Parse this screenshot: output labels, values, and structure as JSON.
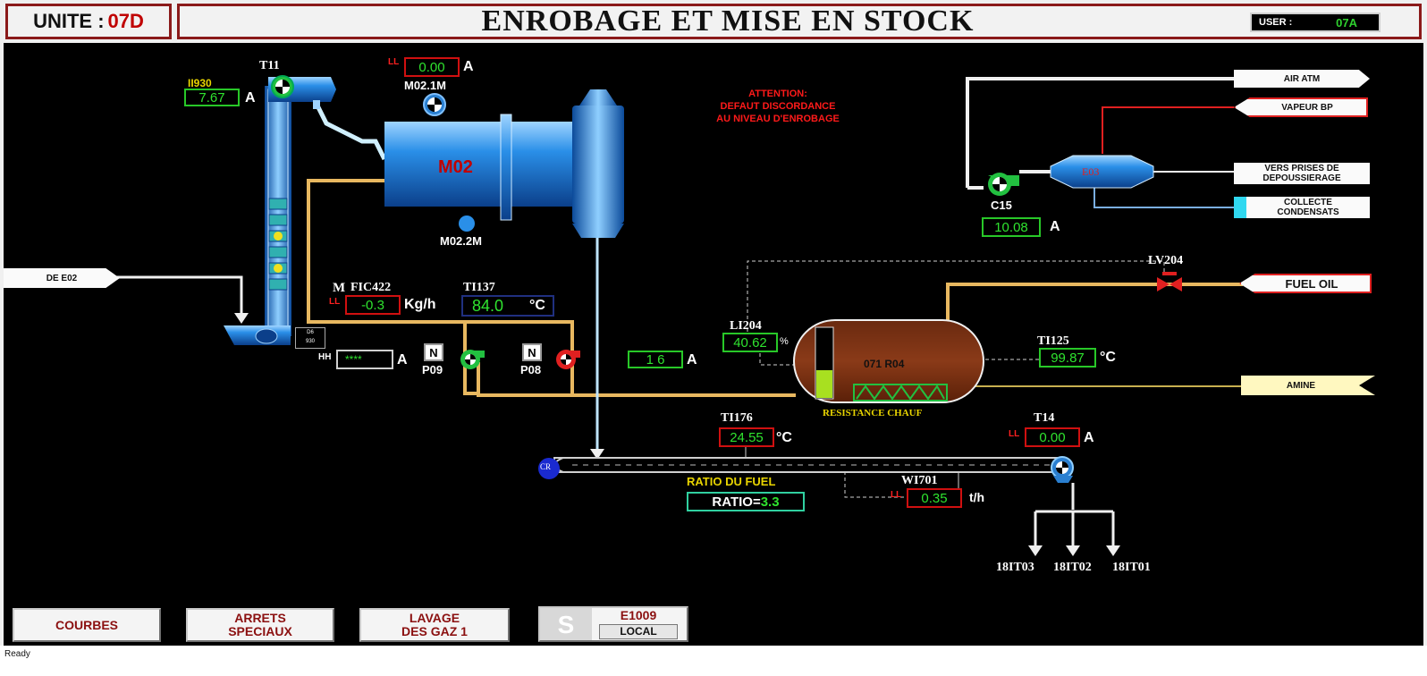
{
  "header": {
    "unit_label": "UNITE :",
    "unit_value": "07D",
    "title": "ENROBAGE ET MISE EN STOCK",
    "user_label": "USER :",
    "user_value": "07A"
  },
  "alarm": {
    "line1": "ATTENTION:",
    "line2": "DEFAUT DISCORDANCE",
    "line3": "AU NIVEAU D'ENROBAGE"
  },
  "flags": {
    "air_atm": "AIR ATM",
    "vapeur_bp": "VAPEUR BP",
    "vers_prises_1": "VERS PRISES DE",
    "vers_prises_2": "DEPOUSSIERAGE",
    "collecte_1": "COLLECTE",
    "collecte_2": "CONDENSATS",
    "fuel_oil": "FUEL OIL",
    "amine": "AMINE",
    "de_e02": "DE E02"
  },
  "equipment": {
    "t11": "T11",
    "ii930": "II930",
    "ii930_value": "7.67",
    "m021m_value": "0.00",
    "m021m": "M02.1M",
    "m02": "M02",
    "m022m": "M02.2M",
    "e03": "E03",
    "c15": "C15",
    "c15_value": "10.08",
    "lv204": "LV204",
    "fic422_m": "M",
    "fic422": "FIC422",
    "fic422_value": "-0.3",
    "fic422_unit": "Kg/h",
    "ti137": "TI137",
    "ti137_value": "84.0",
    "ti137_unit": "°C",
    "hh_label": "HH",
    "hh_value": "****",
    "p09": "P09",
    "p08": "P08",
    "n_label": "N",
    "mid_value": "1 6",
    "li204": "LI204",
    "li204_value": "40.62",
    "li204_unit": "%",
    "r04": "071 R04",
    "r04_level_pct": 40,
    "resistance": "RESISTANCE CHAUF",
    "ti125": "TI125",
    "ti125_value": "99.87",
    "ti125_unit": "°C",
    "ti176": "TI176",
    "ti176_value": "24.55",
    "ti176_unit": "°C",
    "t14": "T14",
    "t14_value": "0.00",
    "ratio_title": "RATIO DU FUEL",
    "ratio_label": "RATIO=",
    "ratio_value": "3.3",
    "wi701": "WI701",
    "wi701_value": "0.35",
    "wi701_unit": "t/h",
    "cr": "CR",
    "elev_tag_1": "D6",
    "elev_tag_2": "930",
    "out1": "18IT03",
    "out2": "18IT02",
    "out3": "18IT01",
    "unit_a": "A",
    "alarm_mark": "LL"
  },
  "buttons": {
    "courbes": "COURBES",
    "arrets_1": "ARRETS",
    "arrets_2": "SPECIAUX",
    "lavage_1": "LAVAGE",
    "lavage_2": "DES GAZ 1",
    "e1009": "E1009",
    "local": "LOCAL"
  },
  "status": {
    "text": "Ready"
  },
  "colors": {
    "background": "#000000",
    "frame": "#8b1a1a",
    "value_green": "#2fe32f",
    "alarm_red": "#ff1a1a",
    "pipe_orange": "#e8b860",
    "equipment_blue": "#2a7fd0"
  }
}
